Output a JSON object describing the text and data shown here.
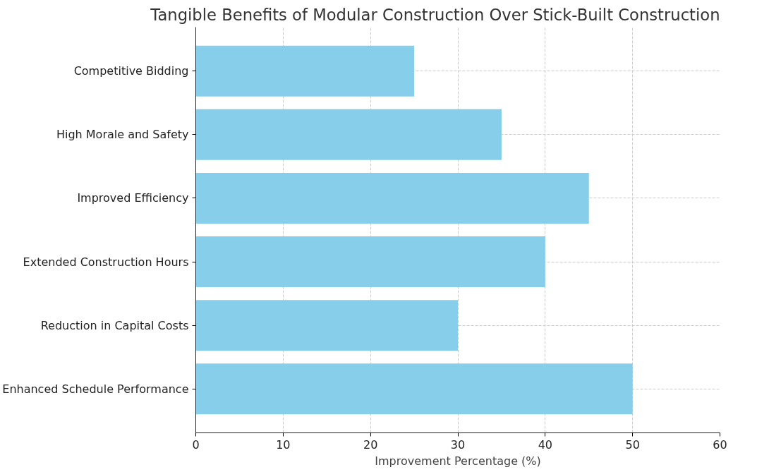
{
  "chart_data": {
    "type": "bar",
    "orientation": "horizontal",
    "title": "Tangible Benefits of Modular Construction Over Stick-Built Construction",
    "xlabel": "Improvement Percentage (%)",
    "categories": [
      "Competitive Bidding",
      "High Morale and Safety",
      "Improved Efficiency",
      "Extended Construction Hours",
      "Reduction in Capital Costs",
      "Enhanced Schedule Performance"
    ],
    "values": [
      25,
      35,
      45,
      40,
      30,
      50
    ],
    "color": "#87ceeb",
    "xlim": [
      0,
      60
    ],
    "xticks": [
      0,
      10,
      20,
      30,
      40,
      50,
      60
    ],
    "grid": true
  }
}
